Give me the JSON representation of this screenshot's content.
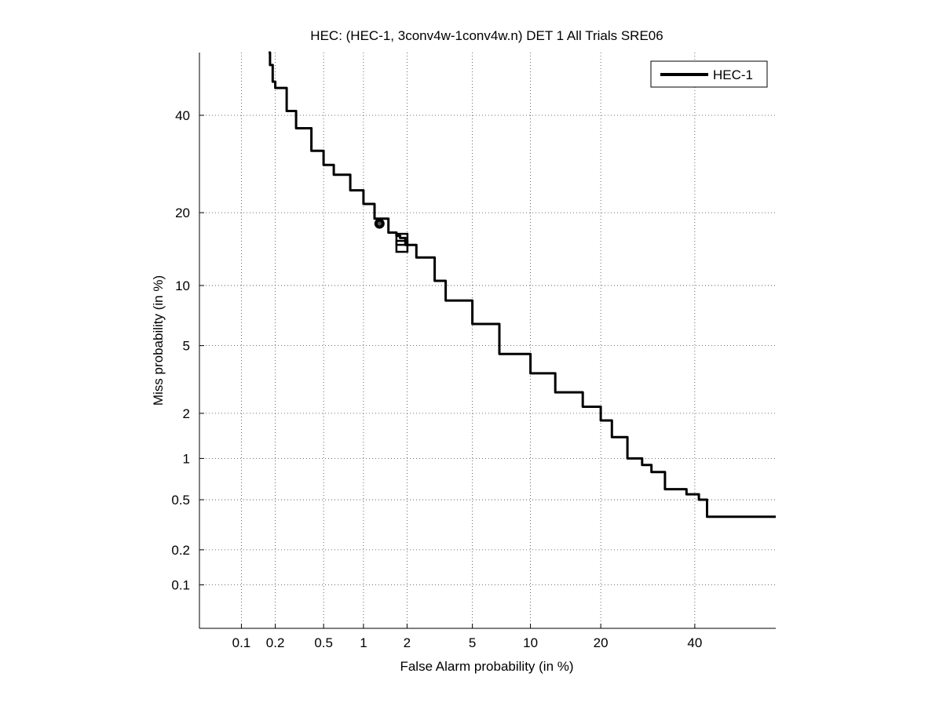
{
  "chart_data": {
    "type": "line",
    "title": "HEC: (HEC-1, 3conv4w-1conv4w.n) DET 1 All Trials SRE06",
    "xlabel": "False Alarm probability (in %)",
    "ylabel": "Miss probability (in %)",
    "scale": "normal-deviate (probit) on both axes",
    "xlim": [
      0.04,
      60
    ],
    "ylim": [
      0.04,
      55
    ],
    "xticks": [
      0.1,
      0.2,
      0.5,
      1,
      2,
      5,
      10,
      20,
      40
    ],
    "xtick_labels": [
      "0.1",
      "0.2",
      "0.5",
      "1",
      "2",
      "5",
      "10",
      "20",
      "40"
    ],
    "yticks": [
      0.1,
      0.2,
      0.5,
      1,
      2,
      5,
      10,
      20,
      40
    ],
    "ytick_labels": [
      "0.1",
      "0.2",
      "0.5",
      "1",
      "2",
      "5",
      "10",
      "20",
      "40"
    ],
    "grid": true,
    "legend_position": "top-right",
    "series": [
      {
        "name": "HEC-1",
        "color": "#000000",
        "points": [
          [
            0.175,
            55
          ],
          [
            0.18,
            52
          ],
          [
            0.19,
            48
          ],
          [
            0.2,
            46.5
          ],
          [
            0.25,
            41
          ],
          [
            0.3,
            37
          ],
          [
            0.4,
            32
          ],
          [
            0.5,
            29
          ],
          [
            0.6,
            27
          ],
          [
            0.8,
            24
          ],
          [
            1.0,
            21.5
          ],
          [
            1.2,
            19
          ],
          [
            1.5,
            16.8
          ],
          [
            1.7,
            16.3
          ],
          [
            1.8,
            16
          ],
          [
            1.95,
            15
          ],
          [
            2.3,
            13.3
          ],
          [
            3.0,
            10.5
          ],
          [
            3.5,
            8.5
          ],
          [
            5.0,
            6.5
          ],
          [
            7.0,
            4.5
          ],
          [
            10.0,
            3.5
          ],
          [
            13.0,
            2.7
          ],
          [
            17.0,
            2.2
          ],
          [
            20.0,
            1.8
          ],
          [
            22.0,
            1.4
          ],
          [
            25.0,
            1.0
          ],
          [
            28.0,
            0.9
          ],
          [
            30.0,
            0.8
          ],
          [
            33.0,
            0.6
          ],
          [
            38.0,
            0.55
          ],
          [
            41.0,
            0.5
          ],
          [
            43.0,
            0.37
          ],
          [
            60.0,
            0.37
          ]
        ]
      }
    ],
    "markers": [
      {
        "shape": "circle",
        "x": 1.3,
        "y": 18.2
      },
      {
        "shape": "square",
        "x": 1.85,
        "y": 15.8
      },
      {
        "shape": "square",
        "x": 1.85,
        "y": 14.8
      }
    ]
  }
}
